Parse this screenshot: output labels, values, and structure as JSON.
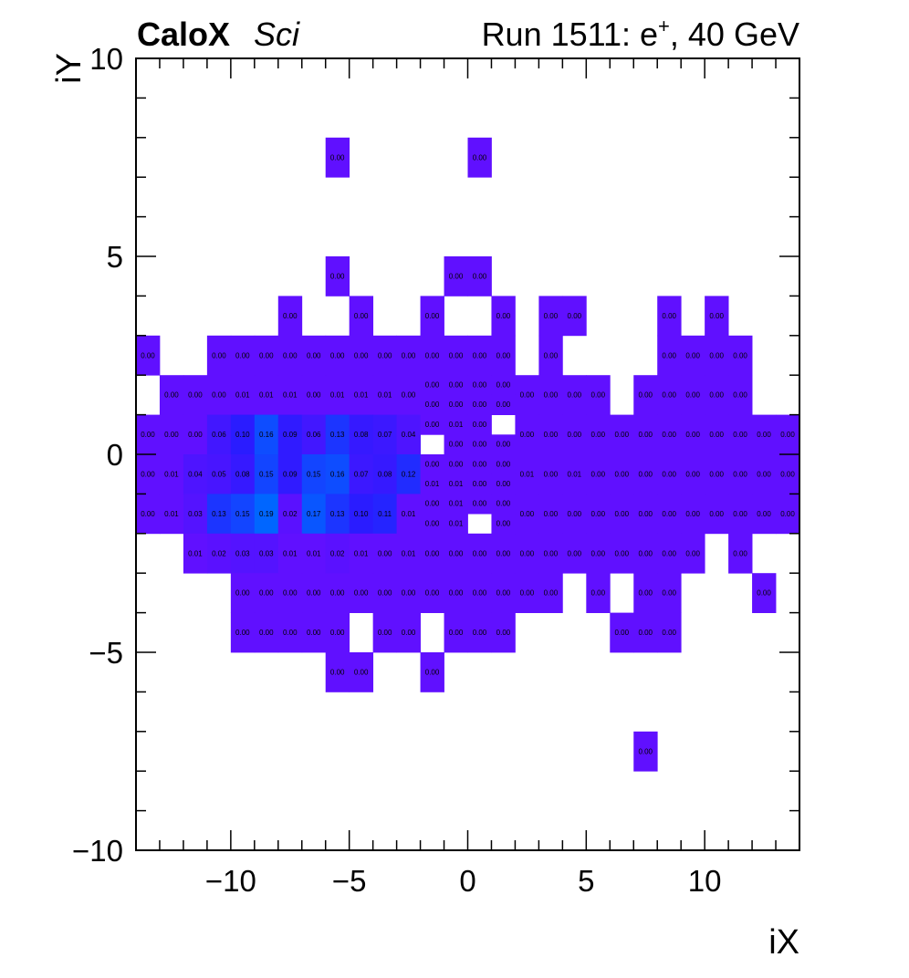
{
  "header": {
    "experiment": "CaloX",
    "detector": "Sci",
    "run_label": "Run 1511: e",
    "run_sup": "+",
    "run_energy": ", 40 GeV"
  },
  "chart_data": {
    "type": "heatmap",
    "xlabel": "iX",
    "ylabel": "iY",
    "xlim": [
      -14,
      14
    ],
    "ylim": [
      -10,
      10
    ],
    "x_ticks": [
      -10,
      -5,
      0,
      5,
      10
    ],
    "y_ticks": [
      -10,
      -5,
      0,
      5,
      10
    ],
    "x_tick_labels": [
      "−10",
      "−5",
      "0",
      "5",
      "10"
    ],
    "y_tick_labels": [
      "−10",
      "−5",
      "0",
      "5",
      "10"
    ],
    "grid": false,
    "palette": {
      "low": "#6010ff",
      "mid": "#2a1cff",
      "high": "#0066ff"
    },
    "cells": [
      {
        "x": -5.5,
        "y": 7.5,
        "v": 0.0
      },
      {
        "x": 0.5,
        "y": 7.5,
        "v": 0.0
      },
      {
        "x": -5.5,
        "y": 4.5,
        "v": 0.0
      },
      {
        "x": -0.5,
        "y": 4.5,
        "v": 0.0
      },
      {
        "x": 0.5,
        "y": 4.5,
        "v": 0.0
      },
      {
        "x": -7.5,
        "y": 3.5,
        "v": 0.0
      },
      {
        "x": -4.5,
        "y": 3.5,
        "v": 0.0
      },
      {
        "x": -1.5,
        "y": 3.5,
        "v": 0.0
      },
      {
        "x": 1.5,
        "y": 3.5,
        "v": 0.0
      },
      {
        "x": 3.5,
        "y": 3.5,
        "v": 0.0
      },
      {
        "x": 4.5,
        "y": 3.5,
        "v": 0.0
      },
      {
        "x": 8.5,
        "y": 3.5,
        "v": 0.0
      },
      {
        "x": 10.5,
        "y": 3.5,
        "v": 0.0
      },
      {
        "x": -13.5,
        "y": 2.5,
        "v": 0.0
      },
      {
        "x": -10.5,
        "y": 2.5,
        "v": 0.0
      },
      {
        "x": -9.5,
        "y": 2.5,
        "v": 0.0
      },
      {
        "x": -8.5,
        "y": 2.5,
        "v": 0.0
      },
      {
        "x": -7.5,
        "y": 2.5,
        "v": 0.0
      },
      {
        "x": -6.5,
        "y": 2.5,
        "v": 0.0
      },
      {
        "x": -5.5,
        "y": 2.5,
        "v": 0.0
      },
      {
        "x": -4.5,
        "y": 2.5,
        "v": 0.0
      },
      {
        "x": -3.5,
        "y": 2.5,
        "v": 0.0
      },
      {
        "x": -2.5,
        "y": 2.5,
        "v": 0.0
      },
      {
        "x": -1.5,
        "y": 2.5,
        "v": 0.0
      },
      {
        "x": -0.5,
        "y": 2.5,
        "v": 0.0
      },
      {
        "x": 0.5,
        "y": 2.5,
        "v": 0.0
      },
      {
        "x": 1.5,
        "y": 2.5,
        "v": 0.0
      },
      {
        "x": 3.5,
        "y": 2.5,
        "v": 0.0
      },
      {
        "x": 8.5,
        "y": 2.5,
        "v": 0.0
      },
      {
        "x": 9.5,
        "y": 2.5,
        "v": 0.0
      },
      {
        "x": 10.5,
        "y": 2.5,
        "v": 0.0
      },
      {
        "x": 11.5,
        "y": 2.5,
        "v": 0.0
      },
      {
        "x": -12.5,
        "y": 1.5,
        "v": 0.0
      },
      {
        "x": -11.5,
        "y": 1.5,
        "v": 0.0
      },
      {
        "x": -10.5,
        "y": 1.5,
        "v": 0.0
      },
      {
        "x": -9.5,
        "y": 1.5,
        "v": 0.01
      },
      {
        "x": -8.5,
        "y": 1.5,
        "v": 0.01
      },
      {
        "x": -7.5,
        "y": 1.5,
        "v": 0.01
      },
      {
        "x": -6.5,
        "y": 1.5,
        "v": 0.0
      },
      {
        "x": -5.5,
        "y": 1.5,
        "v": 0.01
      },
      {
        "x": -4.5,
        "y": 1.5,
        "v": 0.01
      },
      {
        "x": -3.5,
        "y": 1.5,
        "v": 0.01
      },
      {
        "x": -2.5,
        "y": 1.5,
        "v": 0.0
      },
      {
        "x": 2.5,
        "y": 1.5,
        "v": 0.0
      },
      {
        "x": 3.5,
        "y": 1.5,
        "v": 0.0
      },
      {
        "x": 4.5,
        "y": 1.5,
        "v": 0.0
      },
      {
        "x": 5.5,
        "y": 1.5,
        "v": 0.0
      },
      {
        "x": 7.5,
        "y": 1.5,
        "v": 0.0
      },
      {
        "x": 8.5,
        "y": 1.5,
        "v": 0.0
      },
      {
        "x": 9.5,
        "y": 1.5,
        "v": 0.0
      },
      {
        "x": 10.5,
        "y": 1.5,
        "v": 0.0
      },
      {
        "x": 11.5,
        "y": 1.5,
        "v": 0.0
      },
      {
        "x": -13.5,
        "y": 0.5,
        "v": 0.0
      },
      {
        "x": -12.5,
        "y": 0.5,
        "v": 0.0
      },
      {
        "x": -11.5,
        "y": 0.5,
        "v": 0.0
      },
      {
        "x": -10.5,
        "y": 0.5,
        "v": 0.06
      },
      {
        "x": -9.5,
        "y": 0.5,
        "v": 0.1
      },
      {
        "x": -8.5,
        "y": 0.5,
        "v": 0.16
      },
      {
        "x": -7.5,
        "y": 0.5,
        "v": 0.09
      },
      {
        "x": -6.5,
        "y": 0.5,
        "v": 0.06
      },
      {
        "x": -5.5,
        "y": 0.5,
        "v": 0.13
      },
      {
        "x": -4.5,
        "y": 0.5,
        "v": 0.08
      },
      {
        "x": -3.5,
        "y": 0.5,
        "v": 0.07
      },
      {
        "x": -2.5,
        "y": 0.5,
        "v": 0.04
      },
      {
        "x": 2.5,
        "y": 0.5,
        "v": 0.0
      },
      {
        "x": 3.5,
        "y": 0.5,
        "v": 0.0
      },
      {
        "x": 4.5,
        "y": 0.5,
        "v": 0.0
      },
      {
        "x": 5.5,
        "y": 0.5,
        "v": 0.0
      },
      {
        "x": 6.5,
        "y": 0.5,
        "v": 0.0
      },
      {
        "x": 7.5,
        "y": 0.5,
        "v": 0.0
      },
      {
        "x": 8.5,
        "y": 0.5,
        "v": 0.0
      },
      {
        "x": 9.5,
        "y": 0.5,
        "v": 0.0
      },
      {
        "x": 10.5,
        "y": 0.5,
        "v": 0.0
      },
      {
        "x": 11.5,
        "y": 0.5,
        "v": 0.0
      },
      {
        "x": 12.5,
        "y": 0.5,
        "v": 0.0
      },
      {
        "x": 13.5,
        "y": 0.5,
        "v": 0.0
      },
      {
        "x": -13.5,
        "y": -0.5,
        "v": 0.0
      },
      {
        "x": -12.5,
        "y": -0.5,
        "v": 0.01
      },
      {
        "x": -11.5,
        "y": -0.5,
        "v": 0.04
      },
      {
        "x": -10.5,
        "y": -0.5,
        "v": 0.05
      },
      {
        "x": -9.5,
        "y": -0.5,
        "v": 0.08
      },
      {
        "x": -8.5,
        "y": -0.5,
        "v": 0.15
      },
      {
        "x": -7.5,
        "y": -0.5,
        "v": 0.09
      },
      {
        "x": -6.5,
        "y": -0.5,
        "v": 0.15
      },
      {
        "x": -5.5,
        "y": -0.5,
        "v": 0.16
      },
      {
        "x": -4.5,
        "y": -0.5,
        "v": 0.07
      },
      {
        "x": -3.5,
        "y": -0.5,
        "v": 0.08
      },
      {
        "x": -2.5,
        "y": -0.5,
        "v": 0.12
      },
      {
        "x": 2.5,
        "y": -0.5,
        "v": 0.01
      },
      {
        "x": 3.5,
        "y": -0.5,
        "v": 0.0
      },
      {
        "x": 4.5,
        "y": -0.5,
        "v": 0.01
      },
      {
        "x": 5.5,
        "y": -0.5,
        "v": 0.0
      },
      {
        "x": 6.5,
        "y": -0.5,
        "v": 0.0
      },
      {
        "x": 7.5,
        "y": -0.5,
        "v": 0.0
      },
      {
        "x": 8.5,
        "y": -0.5,
        "v": 0.0
      },
      {
        "x": 9.5,
        "y": -0.5,
        "v": 0.0
      },
      {
        "x": 10.5,
        "y": -0.5,
        "v": 0.0
      },
      {
        "x": 11.5,
        "y": -0.5,
        "v": 0.0
      },
      {
        "x": 12.5,
        "y": -0.5,
        "v": 0.0
      },
      {
        "x": 13.5,
        "y": -0.5,
        "v": 0.0
      },
      {
        "x": -13.5,
        "y": -1.5,
        "v": 0.0
      },
      {
        "x": -12.5,
        "y": -1.5,
        "v": 0.01
      },
      {
        "x": -11.5,
        "y": -1.5,
        "v": 0.03
      },
      {
        "x": -10.5,
        "y": -1.5,
        "v": 0.13
      },
      {
        "x": -9.5,
        "y": -1.5,
        "v": 0.15
      },
      {
        "x": -8.5,
        "y": -1.5,
        "v": 0.19
      },
      {
        "x": -7.5,
        "y": -1.5,
        "v": 0.02
      },
      {
        "x": -6.5,
        "y": -1.5,
        "v": 0.17
      },
      {
        "x": -5.5,
        "y": -1.5,
        "v": 0.13
      },
      {
        "x": -4.5,
        "y": -1.5,
        "v": 0.1
      },
      {
        "x": -3.5,
        "y": -1.5,
        "v": 0.11
      },
      {
        "x": -2.5,
        "y": -1.5,
        "v": 0.01
      },
      {
        "x": 2.5,
        "y": -1.5,
        "v": 0.0
      },
      {
        "x": 3.5,
        "y": -1.5,
        "v": 0.0
      },
      {
        "x": 4.5,
        "y": -1.5,
        "v": 0.0
      },
      {
        "x": 5.5,
        "y": -1.5,
        "v": 0.0
      },
      {
        "x": 6.5,
        "y": -1.5,
        "v": 0.0
      },
      {
        "x": 7.5,
        "y": -1.5,
        "v": 0.0
      },
      {
        "x": 8.5,
        "y": -1.5,
        "v": 0.0
      },
      {
        "x": 9.5,
        "y": -1.5,
        "v": 0.0
      },
      {
        "x": 10.5,
        "y": -1.5,
        "v": 0.0
      },
      {
        "x": 11.5,
        "y": -1.5,
        "v": 0.0
      },
      {
        "x": 12.5,
        "y": -1.5,
        "v": 0.0
      },
      {
        "x": 13.5,
        "y": -1.5,
        "v": 0.0
      },
      {
        "x": -11.5,
        "y": -2.5,
        "v": 0.01
      },
      {
        "x": -10.5,
        "y": -2.5,
        "v": 0.02
      },
      {
        "x": -9.5,
        "y": -2.5,
        "v": 0.03
      },
      {
        "x": -8.5,
        "y": -2.5,
        "v": 0.03
      },
      {
        "x": -7.5,
        "y": -2.5,
        "v": 0.01
      },
      {
        "x": -6.5,
        "y": -2.5,
        "v": 0.01
      },
      {
        "x": -5.5,
        "y": -2.5,
        "v": 0.02
      },
      {
        "x": -4.5,
        "y": -2.5,
        "v": 0.01
      },
      {
        "x": -3.5,
        "y": -2.5,
        "v": 0.0
      },
      {
        "x": -2.5,
        "y": -2.5,
        "v": 0.01
      },
      {
        "x": -1.5,
        "y": -2.5,
        "v": 0.0
      },
      {
        "x": -0.5,
        "y": -2.5,
        "v": 0.0
      },
      {
        "x": 0.5,
        "y": -2.5,
        "v": 0.0
      },
      {
        "x": 1.5,
        "y": -2.5,
        "v": 0.0
      },
      {
        "x": 2.5,
        "y": -2.5,
        "v": 0.0
      },
      {
        "x": 3.5,
        "y": -2.5,
        "v": 0.0
      },
      {
        "x": 4.5,
        "y": -2.5,
        "v": 0.0
      },
      {
        "x": 5.5,
        "y": -2.5,
        "v": 0.0
      },
      {
        "x": 6.5,
        "y": -2.5,
        "v": 0.0
      },
      {
        "x": 7.5,
        "y": -2.5,
        "v": 0.0
      },
      {
        "x": 8.5,
        "y": -2.5,
        "v": 0.0
      },
      {
        "x": 9.5,
        "y": -2.5,
        "v": 0.0
      },
      {
        "x": 11.5,
        "y": -2.5,
        "v": 0.0
      },
      {
        "x": -9.5,
        "y": -3.5,
        "v": 0.0
      },
      {
        "x": -8.5,
        "y": -3.5,
        "v": 0.0
      },
      {
        "x": -7.5,
        "y": -3.5,
        "v": 0.0
      },
      {
        "x": -6.5,
        "y": -3.5,
        "v": 0.0
      },
      {
        "x": -5.5,
        "y": -3.5,
        "v": 0.0
      },
      {
        "x": -4.5,
        "y": -3.5,
        "v": 0.0
      },
      {
        "x": -3.5,
        "y": -3.5,
        "v": 0.0
      },
      {
        "x": -2.5,
        "y": -3.5,
        "v": 0.0
      },
      {
        "x": -1.5,
        "y": -3.5,
        "v": 0.0
      },
      {
        "x": -0.5,
        "y": -3.5,
        "v": 0.0
      },
      {
        "x": 0.5,
        "y": -3.5,
        "v": 0.0
      },
      {
        "x": 1.5,
        "y": -3.5,
        "v": 0.0
      },
      {
        "x": 2.5,
        "y": -3.5,
        "v": 0.0
      },
      {
        "x": 3.5,
        "y": -3.5,
        "v": 0.0
      },
      {
        "x": 5.5,
        "y": -3.5,
        "v": 0.0
      },
      {
        "x": 7.5,
        "y": -3.5,
        "v": 0.0
      },
      {
        "x": 8.5,
        "y": -3.5,
        "v": 0.0
      },
      {
        "x": 12.5,
        "y": -3.5,
        "v": 0.0
      },
      {
        "x": -9.5,
        "y": -4.5,
        "v": 0.0
      },
      {
        "x": -8.5,
        "y": -4.5,
        "v": 0.0
      },
      {
        "x": -7.5,
        "y": -4.5,
        "v": 0.0
      },
      {
        "x": -6.5,
        "y": -4.5,
        "v": 0.0
      },
      {
        "x": -5.5,
        "y": -4.5,
        "v": 0.0
      },
      {
        "x": -3.5,
        "y": -4.5,
        "v": 0.0
      },
      {
        "x": -2.5,
        "y": -4.5,
        "v": 0.0
      },
      {
        "x": -0.5,
        "y": -4.5,
        "v": 0.0
      },
      {
        "x": 0.5,
        "y": -4.5,
        "v": 0.0
      },
      {
        "x": 1.5,
        "y": -4.5,
        "v": 0.0
      },
      {
        "x": 6.5,
        "y": -4.5,
        "v": 0.0
      },
      {
        "x": 7.5,
        "y": -4.5,
        "v": 0.0
      },
      {
        "x": 8.5,
        "y": -4.5,
        "v": 0.0
      },
      {
        "x": -5.5,
        "y": -5.5,
        "v": 0.0
      },
      {
        "x": -4.5,
        "y": -5.5,
        "v": 0.0
      },
      {
        "x": -1.5,
        "y": -5.5,
        "v": 0.0
      },
      {
        "x": 7.5,
        "y": -7.5,
        "v": 0.0
      }
    ],
    "fine_cells": [
      {
        "x": -1.5,
        "y": 1.75,
        "v": 0.0
      },
      {
        "x": -0.5,
        "y": 1.75,
        "v": 0.0
      },
      {
        "x": 0.5,
        "y": 1.75,
        "v": 0.0
      },
      {
        "x": 1.5,
        "y": 1.75,
        "v": 0.0
      },
      {
        "x": -1.5,
        "y": 1.25,
        "v": 0.0
      },
      {
        "x": -0.5,
        "y": 1.25,
        "v": 0.0
      },
      {
        "x": 0.5,
        "y": 1.25,
        "v": 0.0
      },
      {
        "x": 1.5,
        "y": 1.25,
        "v": 0.0
      },
      {
        "x": -1.5,
        "y": 0.75,
        "v": 0.0
      },
      {
        "x": -0.5,
        "y": 0.75,
        "v": 0.01
      },
      {
        "x": 0.5,
        "y": 0.75,
        "v": 0.0
      },
      {
        "x": -0.5,
        "y": 0.25,
        "v": 0.0
      },
      {
        "x": 0.5,
        "y": 0.25,
        "v": 0.0
      },
      {
        "x": 1.5,
        "y": 0.25,
        "v": 0.0
      },
      {
        "x": -1.5,
        "y": -0.25,
        "v": 0.0
      },
      {
        "x": -0.5,
        "y": -0.25,
        "v": 0.0
      },
      {
        "x": 0.5,
        "y": -0.25,
        "v": 0.0
      },
      {
        "x": 1.5,
        "y": -0.25,
        "v": 0.0
      },
      {
        "x": -1.5,
        "y": -0.75,
        "v": 0.01
      },
      {
        "x": -0.5,
        "y": -0.75,
        "v": 0.01
      },
      {
        "x": 0.5,
        "y": -0.75,
        "v": 0.0
      },
      {
        "x": 1.5,
        "y": -0.75,
        "v": 0.0
      },
      {
        "x": -1.5,
        "y": -1.25,
        "v": 0.0
      },
      {
        "x": -0.5,
        "y": -1.25,
        "v": 0.01
      },
      {
        "x": 0.5,
        "y": -1.25,
        "v": 0.0
      },
      {
        "x": 1.5,
        "y": -1.25,
        "v": 0.0
      },
      {
        "x": -1.5,
        "y": -1.75,
        "v": 0.0
      },
      {
        "x": -0.5,
        "y": -1.75,
        "v": 0.01
      },
      {
        "x": 1.5,
        "y": -1.75,
        "v": 0.0
      }
    ]
  }
}
